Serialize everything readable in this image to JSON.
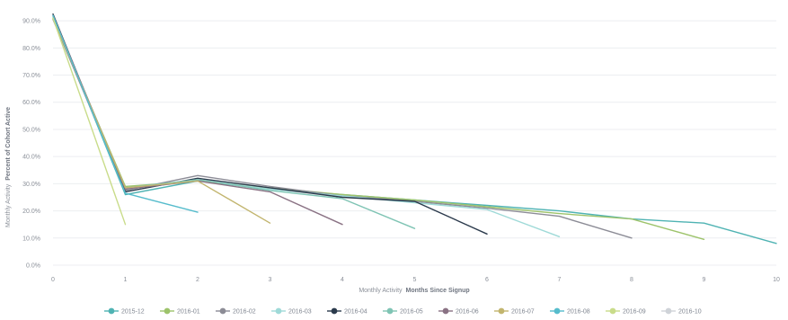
{
  "chart_data": {
    "type": "line",
    "title": "",
    "xlabel_prefix": "Monthly Activity",
    "xlabel": "Months Since Signup",
    "ylabel_prefix": "Monthly Activity",
    "ylabel": "Percent of Cohort Active",
    "x_ticks": [
      "0",
      "1",
      "2",
      "3",
      "4",
      "5",
      "6",
      "7",
      "8",
      "9",
      "10"
    ],
    "y_ticks": [
      "0.0%",
      "10.0%",
      "20.0%",
      "30.0%",
      "40.0%",
      "50.0%",
      "60.0%",
      "70.0%",
      "80.0%",
      "90.0%"
    ],
    "xlim": [
      0,
      10
    ],
    "ylim": [
      0,
      95
    ],
    "grid": true,
    "legend_position": "bottom",
    "series": [
      {
        "name": "2015-12",
        "color": "#4fb3b3",
        "muted": false,
        "x": [
          0,
          1,
          2,
          3,
          4,
          5,
          6,
          7,
          8,
          9,
          10
        ],
        "values": [
          92.0,
          26.0,
          31.0,
          28.0,
          26.0,
          24.0,
          22.0,
          20.0,
          17.0,
          15.5,
          8.0
        ]
      },
      {
        "name": "2016-01",
        "color": "#9dc36b",
        "muted": false,
        "x": [
          0,
          1,
          2,
          3,
          4,
          5,
          6,
          7,
          8,
          9
        ],
        "values": [
          91.0,
          29.0,
          31.0,
          28.5,
          26.0,
          24.0,
          21.5,
          19.0,
          17.0,
          9.5
        ]
      },
      {
        "name": "2016-02",
        "color": "#8c8c96",
        "muted": false,
        "x": [
          0,
          1,
          2,
          3,
          4,
          5,
          6,
          7,
          8
        ],
        "values": [
          90.5,
          27.5,
          33.0,
          29.0,
          25.5,
          23.5,
          21.0,
          18.0,
          10.0
        ]
      },
      {
        "name": "2016-03",
        "color": "#9fdad8",
        "muted": false,
        "x": [
          0,
          1,
          2,
          3,
          4,
          5,
          6,
          7
        ],
        "values": [
          91.5,
          28.0,
          31.5,
          28.0,
          25.5,
          23.0,
          20.5,
          10.5
        ]
      },
      {
        "name": "2016-04",
        "color": "#2b3a4c",
        "muted": false,
        "x": [
          0,
          1,
          2,
          3,
          4,
          5,
          6
        ],
        "values": [
          92.5,
          27.0,
          32.0,
          28.5,
          25.0,
          23.5,
          11.5
        ]
      },
      {
        "name": "2016-05",
        "color": "#7fc4b4",
        "muted": false,
        "x": [
          0,
          1,
          2,
          3,
          4,
          5
        ],
        "values": [
          91.0,
          28.5,
          31.5,
          27.5,
          24.5,
          13.5
        ]
      },
      {
        "name": "2016-06",
        "color": "#8a7284",
        "muted": false,
        "x": [
          0,
          1,
          2,
          3,
          4
        ],
        "values": [
          92.0,
          28.0,
          31.0,
          27.0,
          15.0
        ]
      },
      {
        "name": "2016-07",
        "color": "#c2b56e",
        "muted": false,
        "x": [
          0,
          1,
          2,
          3
        ],
        "values": [
          91.0,
          28.5,
          31.0,
          15.5
        ]
      },
      {
        "name": "2016-08",
        "color": "#56bccc",
        "muted": false,
        "x": [
          0,
          1,
          2
        ],
        "values": [
          92.0,
          26.5,
          19.5
        ]
      },
      {
        "name": "2016-09",
        "color": "#c9dc8a",
        "muted": false,
        "x": [
          0,
          1
        ],
        "values": [
          91.0,
          15.0
        ]
      },
      {
        "name": "2016-10",
        "color": "#cfd3d8",
        "muted": true,
        "x": [
          0
        ],
        "values": [
          91.0
        ]
      }
    ]
  }
}
